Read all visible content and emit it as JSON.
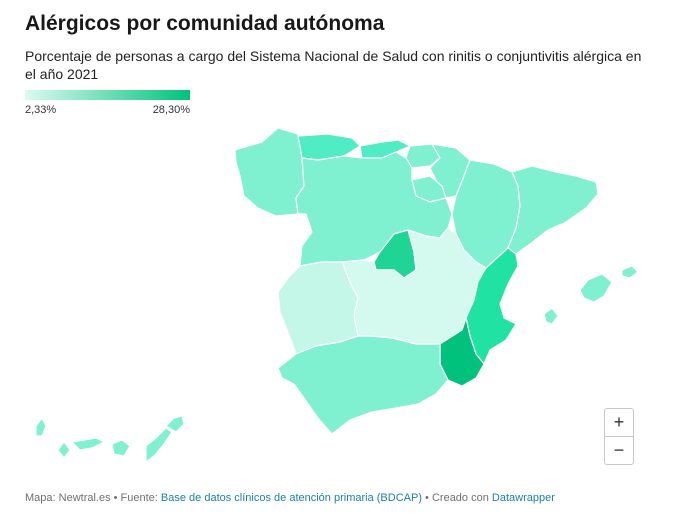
{
  "title": "Alérgicos por comunidad autónoma",
  "subtitle": "Porcentaje de personas a cargo del Sistema Nacional de Salud con rinitis o conjuntivitis alérgica en el año 2021",
  "legend": {
    "min_label": "2,33%",
    "max_label": "28,30%",
    "min_color": "#dcfaf0",
    "max_color": "#00c27d"
  },
  "map": {
    "regions": [
      {
        "name": "Galicia",
        "color": "#7ff0d0"
      },
      {
        "name": "Asturias",
        "color": "#50ecc3"
      },
      {
        "name": "Cantabria",
        "color": "#50ecc3"
      },
      {
        "name": "País Vasco",
        "color": "#7ff0d0"
      },
      {
        "name": "Navarra",
        "color": "#7ff0d0"
      },
      {
        "name": "La Rioja",
        "color": "#7ff0d0"
      },
      {
        "name": "Aragón",
        "color": "#7ff0d0"
      },
      {
        "name": "Cataluña",
        "color": "#7ff0d0"
      },
      {
        "name": "Castilla y León",
        "color": "#7ff0d0"
      },
      {
        "name": "Madrid",
        "color": "#1fd596"
      },
      {
        "name": "Extremadura",
        "color": "#c4f7e7"
      },
      {
        "name": "Castilla-La Mancha",
        "color": "#d4f9ee"
      },
      {
        "name": "Comunidad Valenciana",
        "color": "#20e3a3"
      },
      {
        "name": "Murcia",
        "color": "#00c27d"
      },
      {
        "name": "Andalucía",
        "color": "#7ff0d0"
      },
      {
        "name": "Islas Baleares",
        "color": "#7ff0d0"
      },
      {
        "name": "Canarias",
        "color": "#7ff0d0"
      }
    ]
  },
  "zoom": {
    "in_label": "+",
    "out_label": "−"
  },
  "footer": {
    "prefix": "Mapa: Newtral.es • Fuente: ",
    "source_link": "Base de datos clínicos de atención primaria (BDCAP)",
    "middle": " • Creado con ",
    "tool_link": "Datawrapper"
  }
}
